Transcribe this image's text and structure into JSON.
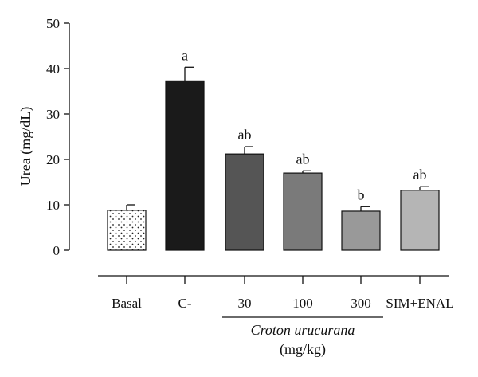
{
  "chart_data": {
    "type": "bar",
    "ylabel": "Urea (mg/dL)",
    "ylim": [
      0,
      50
    ],
    "yticks": [
      0,
      10,
      20,
      30,
      40,
      50
    ],
    "grid": false,
    "categories": [
      "Basal",
      "C-",
      "30",
      "100",
      "300",
      "SIM+ENAL"
    ],
    "values": [
      8.8,
      37.3,
      21.2,
      17.0,
      8.6,
      13.2
    ],
    "errors": [
      1.2,
      3.0,
      1.6,
      0.5,
      1.0,
      0.8
    ],
    "significance": [
      "",
      "a",
      "ab",
      "ab",
      "b",
      "ab"
    ],
    "fills": [
      "dots",
      "#1a1a1a",
      "#555555",
      "#7a7a7a",
      "#999999",
      "#b5b5b5"
    ],
    "group": {
      "name": "Croton urucurana",
      "unit": "(mg/kg)",
      "span": [
        2,
        4
      ]
    }
  }
}
